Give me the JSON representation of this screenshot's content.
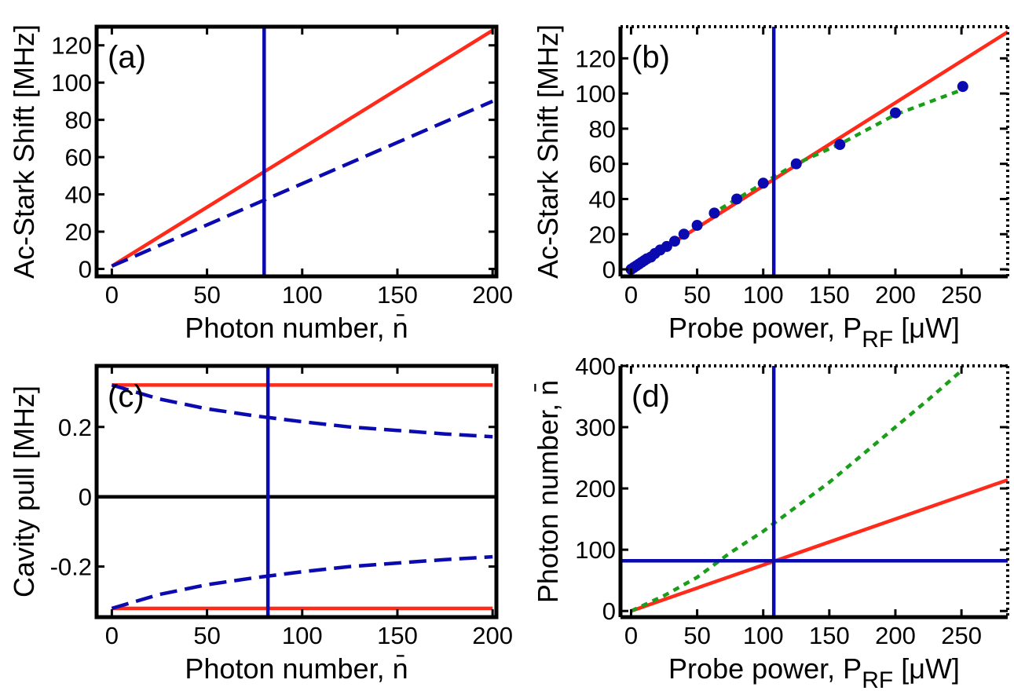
{
  "colors": {
    "red": "#ff2a1a",
    "blue": "#0a0ab0",
    "green": "#1a9e1a",
    "black": "#000000"
  },
  "chart_data": [
    {
      "id": "a",
      "type": "line",
      "panel_label": "(a)",
      "xlabel": "Photon number, n̄",
      "ylabel": "Ac-Stark Shift [MHz]",
      "xlim": [
        -8,
        202
      ],
      "ylim": [
        -4,
        130
      ],
      "xticks": [
        0,
        50,
        100,
        150,
        200
      ],
      "yticks": [
        0,
        20,
        40,
        60,
        80,
        100,
        120
      ],
      "frame": "solid",
      "series": [
        {
          "style": "solid",
          "color": "red",
          "x": [
            0,
            200
          ],
          "y": [
            1.5,
            128
          ]
        },
        {
          "style": "dashed",
          "color": "blue",
          "x": [
            0,
            200
          ],
          "y": [
            1.5,
            90
          ]
        }
      ],
      "vlines": [
        {
          "x": 80,
          "color": "blue"
        }
      ]
    },
    {
      "id": "b",
      "type": "scatter",
      "panel_label": "(b)",
      "xlabel": "Probe power, P",
      "xlabel_sub": "RF",
      "xlabel_unit": " [μW]",
      "ylabel": "Ac-Stark Shift [MHz]",
      "xlim": [
        -8,
        285
      ],
      "ylim": [
        -4,
        138
      ],
      "xticks": [
        0,
        50,
        100,
        150,
        200,
        250
      ],
      "yticks": [
        0,
        20,
        40,
        60,
        80,
        100,
        120
      ],
      "frame": "dotted",
      "series": [
        {
          "style": "solid",
          "color": "red",
          "x": [
            0,
            285
          ],
          "y": [
            0,
            135
          ]
        },
        {
          "style": "dotted",
          "color": "green",
          "x": [
            60,
            80,
            100,
            125,
            160,
            200,
            250
          ],
          "y": [
            31,
            40,
            49,
            60,
            72,
            88,
            102
          ]
        },
        {
          "style": "markers",
          "color": "blue",
          "x": [
            0,
            2,
            4,
            6,
            8,
            10,
            12,
            15,
            18,
            22,
            27,
            33,
            40,
            50,
            63,
            80,
            100,
            125,
            158,
            200,
            251
          ],
          "y": [
            0,
            1,
            2,
            3,
            4,
            5,
            6,
            7,
            9,
            11,
            13,
            16,
            20,
            25,
            32,
            40,
            49,
            60,
            71,
            89,
            104
          ]
        }
      ],
      "vlines": [
        {
          "x": 108,
          "color": "blue"
        }
      ]
    },
    {
      "id": "c",
      "type": "line",
      "panel_label": "(c)",
      "xlabel": "Photon number, n̄",
      "ylabel": "Cavity pull [MHz]",
      "xlim": [
        -8,
        202
      ],
      "ylim": [
        -0.345,
        0.375
      ],
      "xticks": [
        0,
        50,
        100,
        150,
        200
      ],
      "yticks": [
        -0.2,
        0,
        0.2
      ],
      "ytick_labels": [
        "-0.2",
        "0",
        "0.2"
      ],
      "frame": "solid",
      "series": [
        {
          "style": "solid",
          "color": "red",
          "x": [
            0,
            200
          ],
          "y": [
            0.32,
            0.32
          ]
        },
        {
          "style": "solid",
          "color": "red",
          "x": [
            0,
            200
          ],
          "y": [
            -0.32,
            -0.32
          ]
        },
        {
          "style": "solid",
          "color": "black",
          "x": [
            -8,
            202
          ],
          "y": [
            0,
            0
          ]
        },
        {
          "style": "dashed",
          "color": "blue",
          "x": [
            0,
            25,
            50,
            75,
            100,
            125,
            150,
            175,
            200
          ],
          "y": [
            0.32,
            0.28,
            0.252,
            0.232,
            0.215,
            0.2,
            0.19,
            0.18,
            0.172
          ]
        },
        {
          "style": "dashed",
          "color": "blue",
          "x": [
            0,
            25,
            50,
            75,
            100,
            125,
            150,
            175,
            200
          ],
          "y": [
            -0.32,
            -0.28,
            -0.252,
            -0.232,
            -0.215,
            -0.2,
            -0.19,
            -0.18,
            -0.172
          ]
        }
      ],
      "vlines": [
        {
          "x": 82,
          "color": "blue"
        }
      ]
    },
    {
      "id": "d",
      "type": "line",
      "panel_label": "(d)",
      "xlabel": "Probe power, P",
      "xlabel_sub": "RF",
      "xlabel_unit": " [μW]",
      "ylabel": "Photon number, n̄",
      "xlim": [
        -8,
        285
      ],
      "ylim": [
        -10,
        400
      ],
      "xticks": [
        0,
        50,
        100,
        150,
        200,
        250
      ],
      "yticks": [
        0,
        100,
        200,
        300,
        400
      ],
      "frame": "dotted",
      "series": [
        {
          "style": "solid",
          "color": "red",
          "x": [
            0,
            285
          ],
          "y": [
            0,
            214
          ]
        },
        {
          "style": "dotted",
          "color": "green",
          "x": [
            0,
            25,
            50,
            75,
            100,
            125,
            150,
            175,
            200,
            225,
            250
          ],
          "y": [
            0,
            25,
            55,
            95,
            130,
            170,
            210,
            255,
            300,
            345,
            392
          ]
        }
      ],
      "vlines": [
        {
          "x": 108,
          "color": "blue"
        }
      ],
      "hlines": [
        {
          "y": 82,
          "color": "blue"
        }
      ]
    }
  ]
}
